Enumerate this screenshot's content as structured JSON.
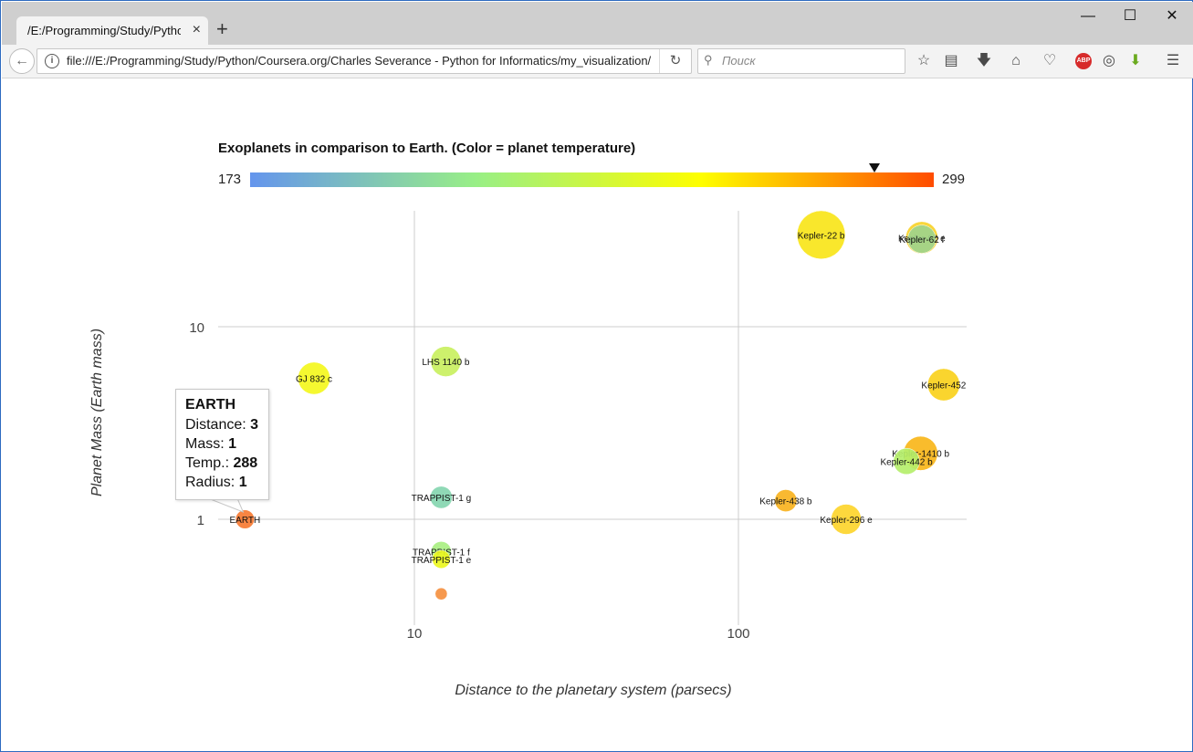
{
  "browser": {
    "tab_title": "/E:/Programming/Study/Python/Coursera.org/Charles Severance - Python for Informatics/my_visualization/",
    "tab_close": "×",
    "new_tab": "+",
    "window_controls": [
      "—",
      "☐",
      "✕"
    ],
    "url": "file:///E:/Programming/Study/Python/Coursera.org/Charles Severance - Python for Informatics/my_visualization/",
    "search_placeholder": "Поиск",
    "toolbar_icons": [
      "star-icon",
      "reading-list-icon",
      "download-icon",
      "home-icon",
      "pocket-icon",
      "adblock-plus-icon",
      "sync-icon",
      "download-helper-icon",
      "menu-icon"
    ],
    "abp_label": "ABP"
  },
  "chart_data": {
    "type": "scatter",
    "title": "Exoplanets in comparison to Earth. (Color = planet temperature)",
    "xlabel": "Distance to the planetary system (parsecs)",
    "ylabel": "Planet Mass (Earth mass)",
    "x_scale": "log",
    "y_scale": "log",
    "xlim": [
      1.78,
      450
    ],
    "ylim": [
      0.3,
      33
    ],
    "x_ticks": [
      10,
      100
    ],
    "y_ticks": [
      1,
      10
    ],
    "grid": true,
    "colorbar": {
      "min": 173,
      "max": 299,
      "marker_value": 288,
      "colors": [
        "#6495ed",
        "#98ef86",
        "#fefe00",
        "#ff4c00"
      ]
    },
    "points": [
      {
        "label": "EARTH",
        "x": 3,
        "y": 1,
        "temp": 288,
        "r": 1,
        "color": "#f77b33"
      },
      {
        "label": "GJ 832 c",
        "x": 4.9,
        "y": 5.4,
        "temp": 253,
        "r": 1.6,
        "color": "#f4f71e"
      },
      {
        "label": "LHS 1140 b",
        "x": 12.5,
        "y": 6.6,
        "temp": 230,
        "r": 1.5,
        "color": "#c9f060"
      },
      {
        "label": "TRAPPIST-1 g",
        "x": 12.1,
        "y": 1.3,
        "temp": 199,
        "r": 1.1,
        "color": "#86d6b0"
      },
      {
        "label": "TRAPPIST-1 f",
        "x": 12.1,
        "y": 0.68,
        "temp": 219,
        "r": 1,
        "color": "#a9ef82"
      },
      {
        "label": "TRAPPIST-1 e",
        "x": 12.1,
        "y": 0.62,
        "temp": 251,
        "r": 0.9,
        "color": "#ecf721"
      },
      {
        "label": "",
        "x": 12.1,
        "y": 0.41,
        "temp": 288,
        "r": 0.6,
        "color": "#f59040"
      },
      {
        "label": "Kepler-22 b",
        "x": 180,
        "y": 30,
        "temp": 262,
        "r": 2.4,
        "color": "#f9e51a"
      },
      {
        "label": "Kepler-62 e",
        "x": 368,
        "y": 29,
        "temp": 270,
        "r": 1.6,
        "color": "#f9d22a"
      },
      {
        "label": "Kepler-62 f",
        "x": 368,
        "y": 28.5,
        "temp": 208,
        "r": 1.4,
        "color": "#9ed48c"
      },
      {
        "label": "Kepler-452",
        "x": 430,
        "y": 5,
        "temp": 265,
        "r": 1.6,
        "color": "#fad11c"
      },
      {
        "label": "Kepler-1410 b",
        "x": 365,
        "y": 2.2,
        "temp": 274,
        "r": 1.7,
        "color": "#f8b61a"
      },
      {
        "label": "Kepler-442 b",
        "x": 330,
        "y": 2,
        "temp": 233,
        "r": 1.3,
        "color": "#b5ef6b"
      },
      {
        "label": "Kepler-438 b",
        "x": 140,
        "y": 1.25,
        "temp": 276,
        "r": 1.1,
        "color": "#f8b320"
      },
      {
        "label": "Kepler-296 e",
        "x": 215,
        "y": 1,
        "temp": 267,
        "r": 1.5,
        "color": "#fdd52c"
      }
    ]
  },
  "tooltip": {
    "title": "EARTH",
    "distance_label": "Distance:",
    "distance_value": "3",
    "mass_label": "Mass:",
    "mass_value": "1",
    "temp_label": "Temp.:",
    "temp_value": "288",
    "radius_label": "Radius:",
    "radius_value": "1"
  }
}
